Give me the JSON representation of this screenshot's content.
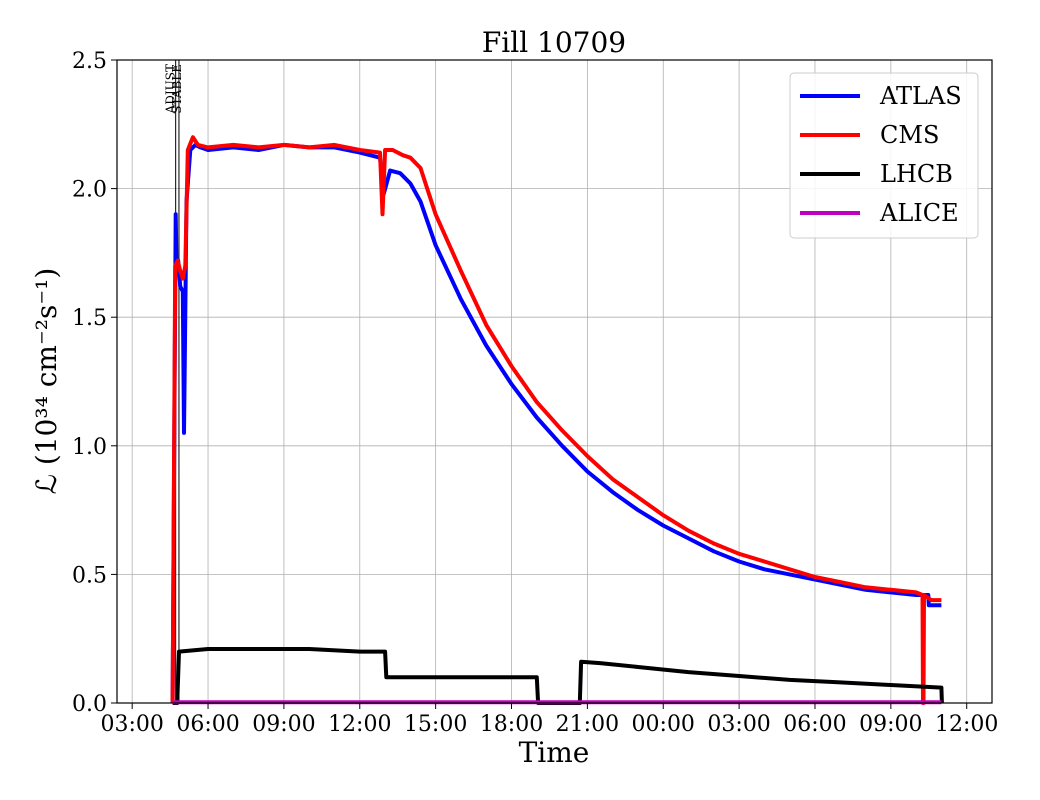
{
  "chart_data": {
    "type": "line",
    "title": "Fill 10709",
    "xlabel": "Time",
    "ylabel": "ℒ (10³⁴ cm⁻²s⁻¹)",
    "xlim": [
      "03:00",
      "12:00 (next day)"
    ],
    "ylim": [
      0,
      2.5
    ],
    "grid": true,
    "legend_position": "top-right",
    "x_tick_labels": [
      "03:00",
      "06:00",
      "09:00",
      "12:00",
      "15:00",
      "18:00",
      "21:00",
      "00:00",
      "03:00",
      "06:00",
      "09:00",
      "12:00"
    ],
    "y_tick_labels": [
      "0.0",
      "0.5",
      "1.0",
      "1.5",
      "2.0",
      "2.5"
    ],
    "y_ticks": [
      0,
      0.5,
      1.0,
      1.5,
      2.0,
      2.5
    ],
    "x_ticks_hours": [
      3,
      6,
      9,
      12,
      15,
      18,
      21,
      24,
      27,
      30,
      33,
      36
    ],
    "markers": [
      {
        "label": "ADJUST",
        "x_hours": 4.72
      },
      {
        "label": "STABLE",
        "x_hours": 4.85
      }
    ],
    "series": [
      {
        "name": "ATLAS",
        "color": "#0000ff",
        "x_hours": [
          4.6,
          4.72,
          4.75,
          4.82,
          4.9,
          5.0,
          5.05,
          5.15,
          5.3,
          5.5,
          5.7,
          6.0,
          7.0,
          8.0,
          9.0,
          10.0,
          11.0,
          12.0,
          12.8,
          12.95,
          13.2,
          13.6,
          14.0,
          14.4,
          15.0,
          16.0,
          17.0,
          18.0,
          19.0,
          20.0,
          21.0,
          22.0,
          23.0,
          24.0,
          25.0,
          26.0,
          27.0,
          28.0,
          29.0,
          30.0,
          31.0,
          32.0,
          33.0,
          34.0,
          34.48,
          34.5,
          34.52,
          35.0
        ],
        "y": [
          0.0,
          1.9,
          1.72,
          1.72,
          1.62,
          1.6,
          1.05,
          1.95,
          2.15,
          2.17,
          2.16,
          2.15,
          2.16,
          2.15,
          2.17,
          2.16,
          2.16,
          2.14,
          2.12,
          1.98,
          2.07,
          2.06,
          2.02,
          1.95,
          1.78,
          1.57,
          1.39,
          1.24,
          1.11,
          1.0,
          0.9,
          0.82,
          0.75,
          0.69,
          0.64,
          0.59,
          0.55,
          0.52,
          0.5,
          0.48,
          0.46,
          0.44,
          0.43,
          0.42,
          0.42,
          0.38,
          0.38,
          0.38
        ]
      },
      {
        "name": "CMS",
        "color": "#ff0000",
        "x_hours": [
          4.6,
          4.7,
          4.8,
          4.9,
          5.0,
          5.1,
          5.2,
          5.4,
          5.6,
          6.0,
          7.0,
          8.0,
          9.0,
          10.0,
          11.0,
          12.0,
          12.8,
          12.9,
          13.0,
          13.3,
          13.7,
          14.0,
          14.4,
          15.0,
          16.0,
          17.0,
          18.0,
          19.0,
          20.0,
          21.0,
          22.0,
          23.0,
          24.0,
          25.0,
          26.0,
          27.0,
          28.0,
          29.0,
          30.0,
          31.0,
          32.0,
          33.0,
          34.0,
          34.25,
          34.27,
          34.29,
          34.31,
          34.6,
          35.0
        ],
        "y": [
          0.0,
          1.7,
          1.72,
          1.68,
          1.65,
          1.7,
          2.15,
          2.2,
          2.17,
          2.16,
          2.17,
          2.16,
          2.17,
          2.16,
          2.17,
          2.15,
          2.14,
          1.9,
          2.15,
          2.15,
          2.13,
          2.12,
          2.08,
          1.9,
          1.68,
          1.47,
          1.31,
          1.17,
          1.06,
          0.96,
          0.87,
          0.8,
          0.73,
          0.67,
          0.62,
          0.58,
          0.55,
          0.52,
          0.49,
          0.47,
          0.45,
          0.44,
          0.43,
          0.42,
          0.0,
          0.0,
          0.42,
          0.4,
          0.4
        ]
      },
      {
        "name": "LHCB",
        "color": "#000000",
        "x_hours": [
          4.6,
          4.78,
          4.85,
          6.0,
          8.0,
          10.0,
          12.0,
          13.0,
          13.05,
          14.0,
          16.0,
          18.0,
          19.0,
          19.05,
          20.7,
          20.75,
          21.5,
          23.0,
          25.0,
          27.0,
          29.0,
          31.0,
          33.0,
          35.0,
          35.02
        ],
        "y": [
          0.0,
          0.0,
          0.2,
          0.21,
          0.21,
          0.21,
          0.2,
          0.2,
          0.1,
          0.1,
          0.1,
          0.1,
          0.1,
          0.0,
          0.0,
          0.16,
          0.155,
          0.14,
          0.12,
          0.105,
          0.09,
          0.08,
          0.07,
          0.06,
          0.0
        ]
      },
      {
        "name": "ALICE",
        "color": "#bf00bf",
        "x_hours": [
          4.6,
          35.0
        ],
        "y": [
          0.003,
          0.003
        ]
      }
    ]
  }
}
